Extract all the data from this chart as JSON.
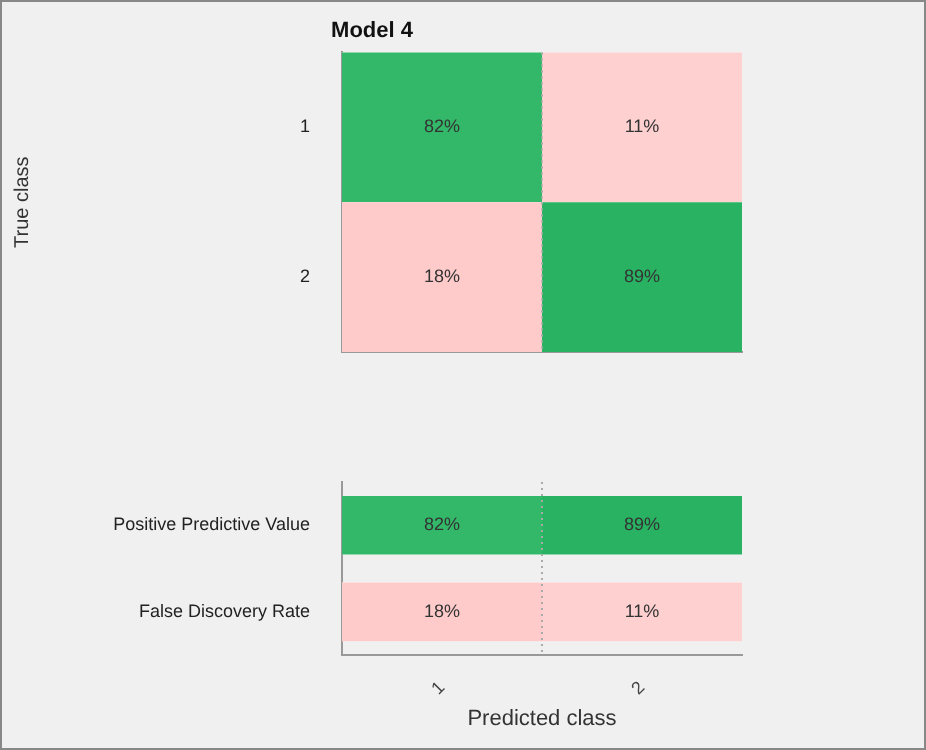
{
  "chart_data": [
    {
      "type": "heatmap",
      "title": "Model 4",
      "ylabel": "True class",
      "categories": [
        "1",
        "2"
      ],
      "y_categories": [
        "1",
        "2"
      ],
      "cells": [
        [
          82,
          11
        ],
        [
          18,
          89
        ]
      ],
      "cell_labels": [
        [
          "82%",
          "11%"
        ],
        [
          "18%",
          "89%"
        ]
      ],
      "colors": [
        [
          "#2db665",
          "#ffc9c9"
        ],
        [
          "#ffc3c3",
          "#26b160"
        ]
      ],
      "tick_labels": "y"
    },
    {
      "type": "heatmap",
      "xlabel": "Predicted class",
      "categories": [
        "1",
        "2"
      ],
      "y_categories": [
        "Positive Predictive Value",
        "False Discovery Rate"
      ],
      "cells": [
        [
          82,
          89
        ],
        [
          18,
          11
        ]
      ],
      "cell_labels": [
        [
          "82%",
          "89%"
        ],
        [
          "18%",
          "11%"
        ]
      ],
      "colors": [
        [
          "#2db665",
          "#26b160"
        ],
        [
          "#ffc3c3",
          "#ffc9c9"
        ]
      ]
    }
  ]
}
